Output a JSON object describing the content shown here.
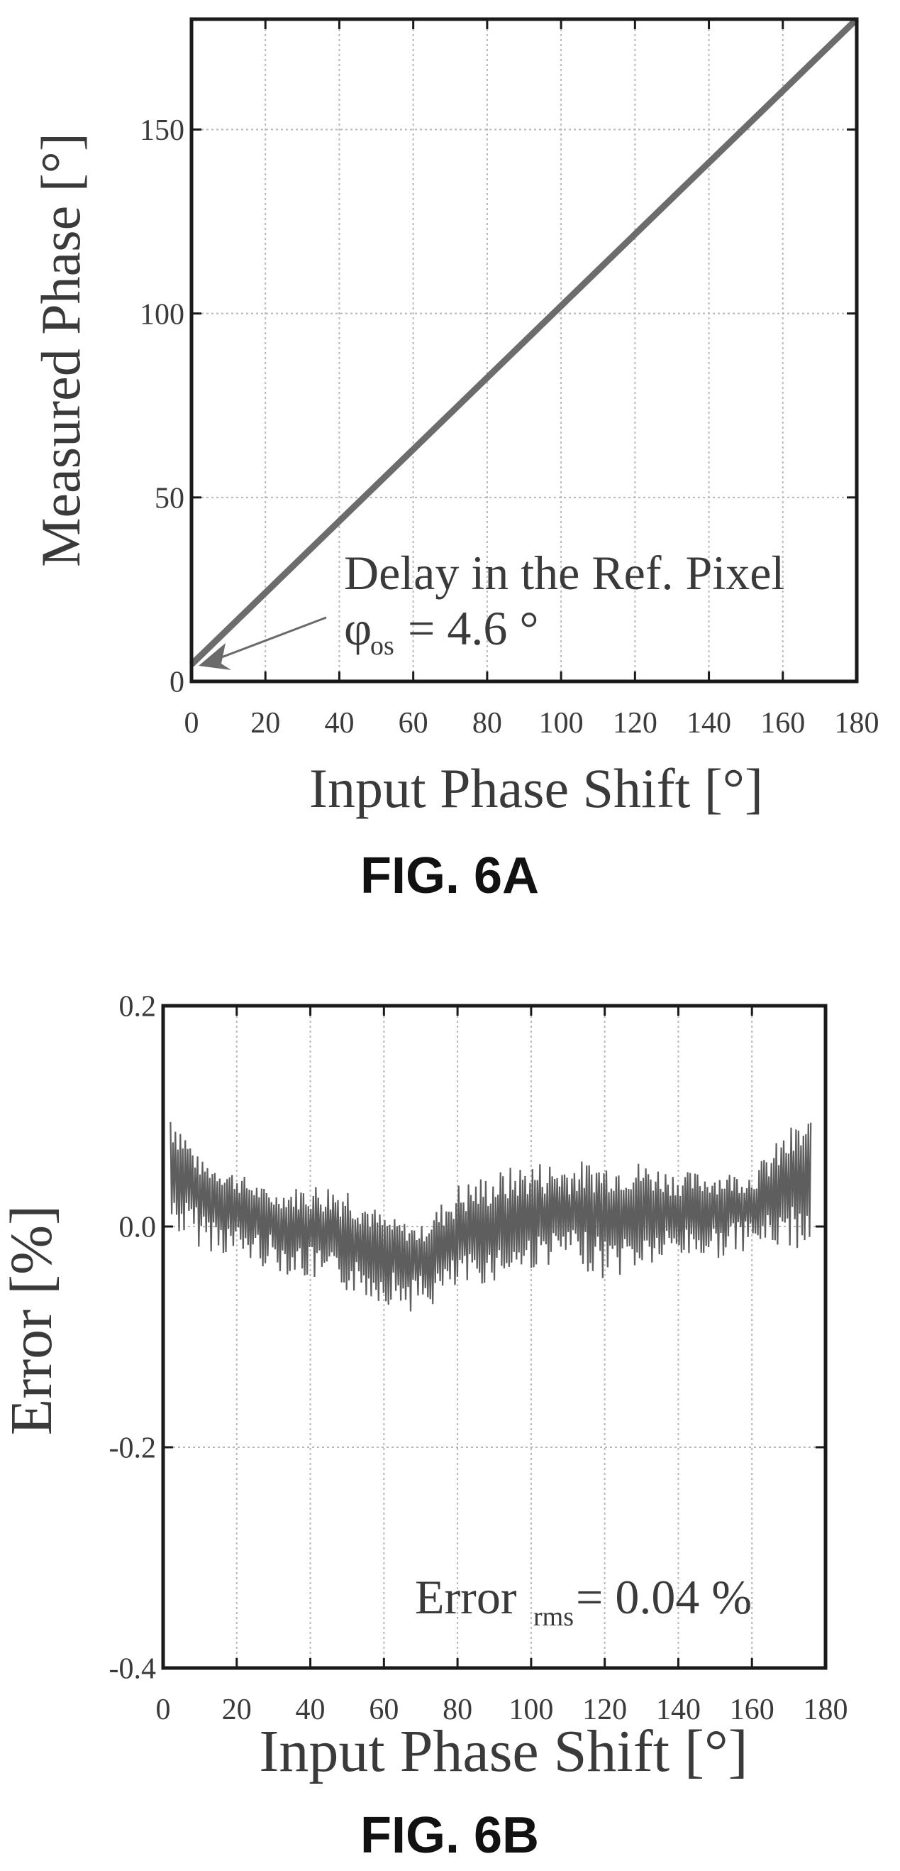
{
  "figures": [
    {
      "caption": "FIG. 6A"
    },
    {
      "caption": "FIG. 6B"
    }
  ],
  "chart_data": [
    {
      "type": "line",
      "xlabel": "Input Phase Shift [°]",
      "ylabel": "Measured Phase [°]",
      "xlim": [
        0,
        180
      ],
      "ylim": [
        0,
        180
      ],
      "xticks": [
        0,
        20,
        40,
        60,
        80,
        100,
        120,
        140,
        160,
        180
      ],
      "yticks": [
        0,
        50,
        100,
        150
      ],
      "grid": true,
      "annotation": {
        "line1": "Delay in the Ref. Pixel",
        "line2_symbol": "φ",
        "line2_subscript": "os",
        "line2_value": "= 4.6 °"
      },
      "series": [
        {
          "x": [
            0,
            180
          ],
          "y": [
            4.6,
            180
          ]
        }
      ]
    },
    {
      "type": "line",
      "xlabel": "Input Phase Shift [°]",
      "ylabel": "Error [%]",
      "xlim": [
        0,
        180
      ],
      "ylim": [
        -0.4,
        0.2
      ],
      "xticks": [
        0,
        20,
        40,
        60,
        80,
        100,
        120,
        140,
        160,
        180
      ],
      "yticks": [
        "-0.4",
        "-0.2",
        "0.0",
        "0.2"
      ],
      "grid": true,
      "annotation": {
        "main": "Error",
        "subscript": "rms",
        "value": "= 0.04 %"
      },
      "series": [
        {
          "envelope_x": [
            0,
            10,
            20,
            30,
            40,
            50,
            60,
            70,
            80,
            90,
            100,
            110,
            120,
            130,
            140,
            150,
            160,
            170,
            175
          ],
          "envelope_upper": [
            0.13,
            0.06,
            0.05,
            0.03,
            0.04,
            0.04,
            0.01,
            0.0,
            0.04,
            0.05,
            0.06,
            0.06,
            0.06,
            0.06,
            0.05,
            0.05,
            0.05,
            0.09,
            0.1
          ],
          "envelope_lower": [
            0.0,
            -0.02,
            -0.03,
            -0.04,
            -0.05,
            -0.06,
            -0.07,
            -0.08,
            -0.06,
            -0.05,
            -0.04,
            -0.03,
            -0.05,
            -0.04,
            -0.03,
            -0.03,
            -0.02,
            -0.02,
            -0.02
          ],
          "mean_x": [
            0,
            20,
            40,
            60,
            70,
            80,
            100,
            120,
            140,
            160,
            175
          ],
          "mean_y": [
            0.055,
            0.02,
            0.0,
            -0.02,
            -0.025,
            -0.01,
            0.01,
            0.015,
            0.015,
            0.02,
            0.045
          ]
        }
      ]
    }
  ]
}
